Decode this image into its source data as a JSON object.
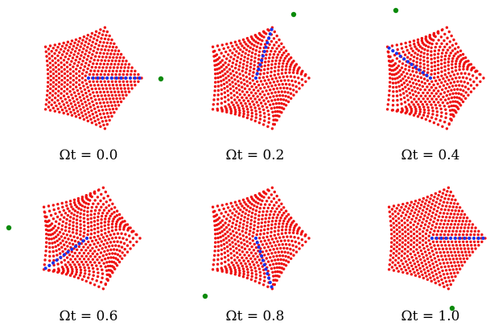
{
  "figure": {
    "panels": [
      {
        "caption": "Ωt = 0.0",
        "phase": 0.0
      },
      {
        "caption": "Ωt = 0.2",
        "phase": 0.2
      },
      {
        "caption": "Ωt = 0.4",
        "phase": 0.4
      },
      {
        "caption": "Ωt = 0.6",
        "phase": 0.6
      },
      {
        "caption": "Ωt = 0.8",
        "phase": 0.8
      },
      {
        "caption": "Ωt = 1.0",
        "phase": 1.0
      }
    ],
    "colors": {
      "lattice_points": "#ee1111",
      "highlighted_arm": "#1a33ee",
      "marker": "#0a8a0a",
      "background": "#ffffff"
    }
  }
}
